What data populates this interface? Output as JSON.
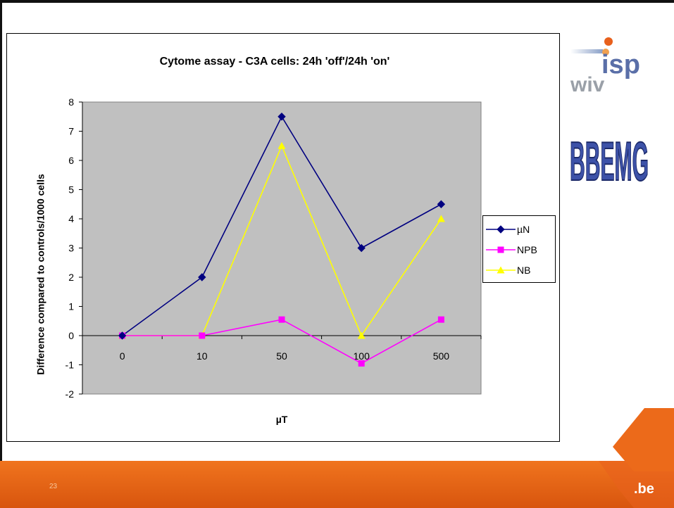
{
  "chart_data": {
    "type": "line",
    "title": "Cytome assay - C3A cells: 24h 'off'/24h 'on'",
    "xlabel": "µT",
    "ylabel": "Difference compared to controls/1000 cells",
    "categories": [
      "0",
      "10",
      "50",
      "100",
      "500"
    ],
    "ylim": [
      -2,
      8
    ],
    "yticks": [
      -2,
      -1,
      0,
      1,
      2,
      3,
      4,
      5,
      6,
      7,
      8
    ],
    "grid": false,
    "legend_position": "right",
    "plot_background": "#c0c0c0",
    "series": [
      {
        "name": "µN",
        "values": [
          0,
          2,
          7.5,
          3,
          4.5
        ],
        "color": "#000080",
        "marker": "diamond"
      },
      {
        "name": "NPB",
        "values": [
          0,
          0,
          0.55,
          -0.95,
          0.55
        ],
        "color": "#ff00ff",
        "marker": "square"
      },
      {
        "name": "NB",
        "values": [
          0,
          0,
          6.5,
          0,
          4
        ],
        "color": "#ffff00",
        "marker": "triangle"
      }
    ]
  },
  "slide": {
    "page_number": "23",
    "footer_logo_text": ".be",
    "accent_color": "#e8601c"
  },
  "logos": {
    "isp_text": "isp",
    "wiv_text": "wiv",
    "bbemg_text": "BBEMG"
  }
}
